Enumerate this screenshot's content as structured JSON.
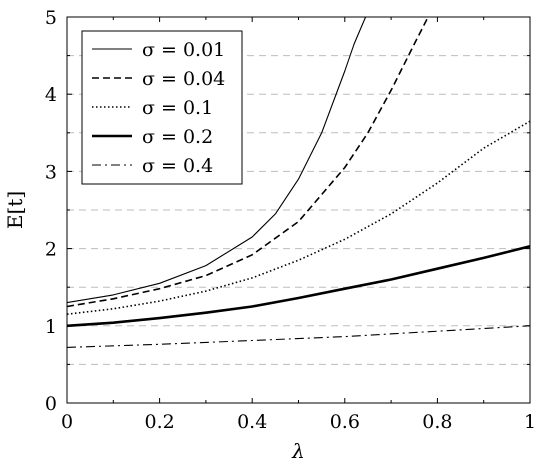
{
  "chart_data": {
    "type": "line",
    "xlabel": "λ",
    "ylabel": "E[t]",
    "xlim": [
      0,
      1
    ],
    "ylim": [
      0,
      5
    ],
    "x_ticks": [
      "0",
      "0.2",
      "0.4",
      "0.6",
      "0.8",
      "1"
    ],
    "y_ticks": [
      "0",
      "1",
      "2",
      "3",
      "4",
      "5"
    ],
    "grid": "horizontal dashed every 0.5",
    "legend_position": "top-left",
    "series": [
      {
        "name": "σ = 0.01",
        "style": "solid-thin",
        "x": [
          0,
          0.1,
          0.2,
          0.3,
          0.4,
          0.45,
          0.5,
          0.55,
          0.6,
          0.62,
          0.64,
          0.645
        ],
        "y": [
          1.3,
          1.4,
          1.55,
          1.78,
          2.15,
          2.45,
          2.9,
          3.5,
          4.3,
          4.65,
          4.93,
          5.0
        ]
      },
      {
        "name": "σ = 0.04",
        "style": "dashed",
        "x": [
          0,
          0.1,
          0.2,
          0.3,
          0.4,
          0.5,
          0.6,
          0.65,
          0.7,
          0.75,
          0.78
        ],
        "y": [
          1.25,
          1.35,
          1.48,
          1.65,
          1.92,
          2.35,
          3.05,
          3.5,
          4.05,
          4.65,
          5.0
        ]
      },
      {
        "name": "σ = 0.1",
        "style": "dotted",
        "x": [
          0,
          0.1,
          0.2,
          0.3,
          0.4,
          0.5,
          0.6,
          0.7,
          0.8,
          0.9,
          1.0
        ],
        "y": [
          1.15,
          1.22,
          1.32,
          1.45,
          1.62,
          1.85,
          2.12,
          2.45,
          2.85,
          3.3,
          3.65
        ]
      },
      {
        "name": "σ = 0.2",
        "style": "solid-thick",
        "x": [
          0,
          0.1,
          0.2,
          0.3,
          0.4,
          0.5,
          0.6,
          0.7,
          0.8,
          0.9,
          1.0
        ],
        "y": [
          1.0,
          1.04,
          1.1,
          1.17,
          1.25,
          1.36,
          1.48,
          1.6,
          1.74,
          1.88,
          2.03
        ]
      },
      {
        "name": "σ = 0.4",
        "style": "dashdot",
        "x": [
          0,
          0.2,
          0.4,
          0.6,
          0.8,
          1.0
        ],
        "y": [
          0.72,
          0.76,
          0.81,
          0.86,
          0.93,
          1.0
        ]
      }
    ]
  }
}
